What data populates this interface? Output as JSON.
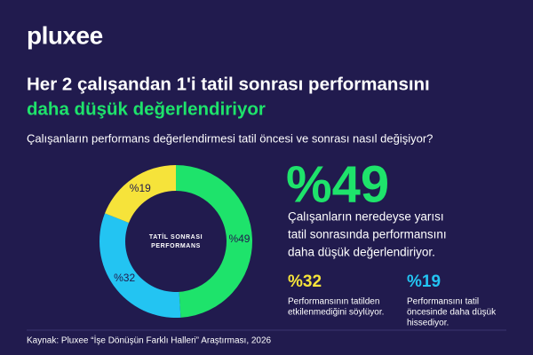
{
  "logo": "pluxee",
  "header": {
    "title": "Her 2 çalışandan 1'i tatil sonrası performansını",
    "highlight": "daha düşük değerlendiriyor",
    "question": "Çalışanların performans değerlendirmesi tatil öncesi ve sonrası nasıl değişiyor?"
  },
  "chart_data": {
    "type": "donut",
    "center_label": [
      "TATİL SONRASI",
      "PERFORMANS"
    ],
    "values": [
      49,
      32,
      19
    ],
    "value_labels": [
      "%49",
      "%32",
      "%19"
    ],
    "colors": [
      "#1ee36b",
      "#23c4f2",
      "#f6e33a"
    ]
  },
  "highlight_stat": {
    "value": "%49",
    "text": [
      "Çalışanların neredeyse yarısı",
      "tatil sonrasında performansını",
      "daha düşük değerlendiriyor."
    ]
  },
  "stats": [
    {
      "value": "%32",
      "color": "#f6e33a",
      "text": [
        "Performansının tatilden",
        "etkilenmediğini söylüyor."
      ]
    },
    {
      "value": "%19",
      "color": "#23c4f2",
      "text": [
        "Performansını tatil",
        "öncesinde daha düşük",
        "hissediyor."
      ]
    }
  ],
  "source": "Kaynak: Pluxee “İşe Dönüşün Farklı Halleri” Araştırması, 2026"
}
